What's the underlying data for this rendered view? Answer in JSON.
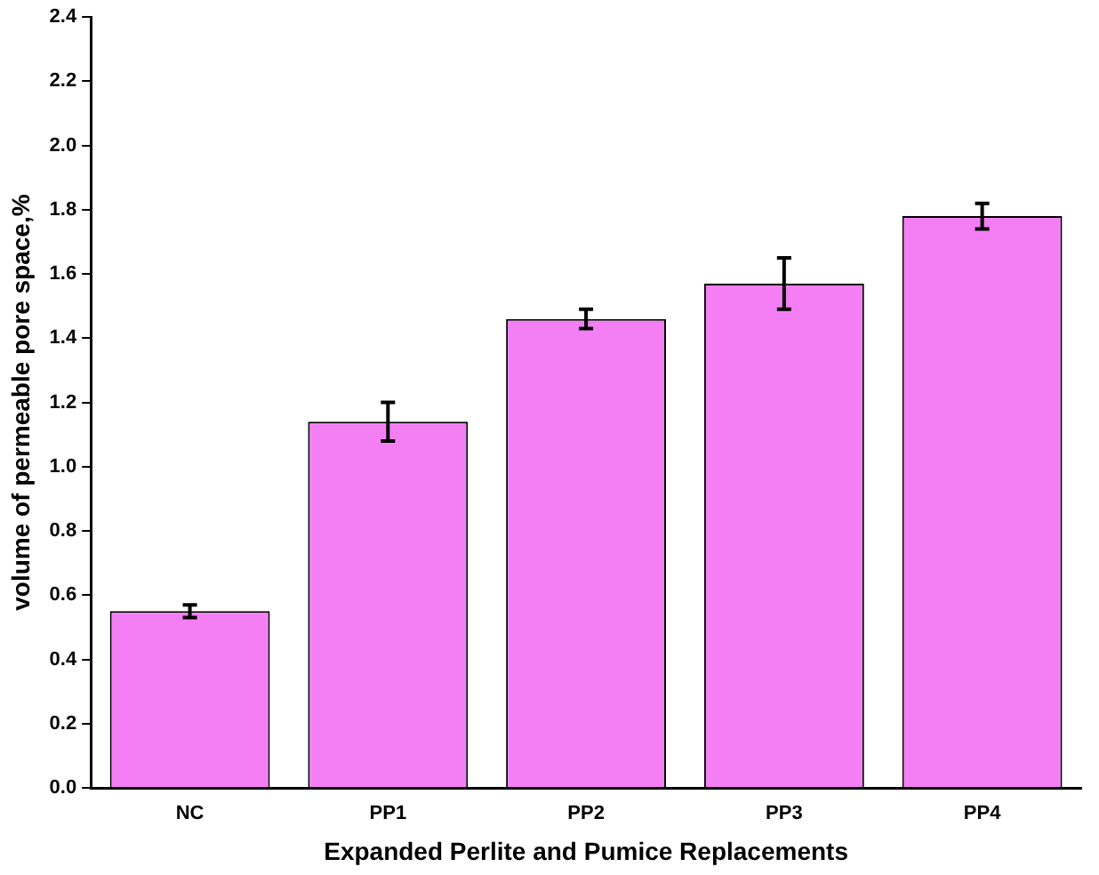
{
  "chart_data": {
    "type": "bar",
    "xlabel": "Expanded Perlite and Pumice Replacements",
    "ylabel": "volume of permeable pore space,%",
    "categories": [
      "NC",
      "PP1",
      "PP2",
      "PP3",
      "PP4"
    ],
    "values": [
      0.55,
      1.14,
      1.46,
      1.57,
      1.78
    ],
    "errors": [
      0.02,
      0.06,
      0.03,
      0.08,
      0.04
    ],
    "color": "#f47ff4",
    "ylim": [
      0,
      2.4
    ],
    "yticks": [
      {
        "value": 0,
        "label": "0.0"
      },
      0.2,
      0.4,
      0.6,
      0.8,
      {
        "value": 1,
        "label": "1.0"
      },
      1.2,
      1.4,
      1.6,
      1.8,
      {
        "value": 2,
        "label": "2.0"
      },
      2.2,
      2.4
    ],
    "grid": false,
    "legend": false
  }
}
